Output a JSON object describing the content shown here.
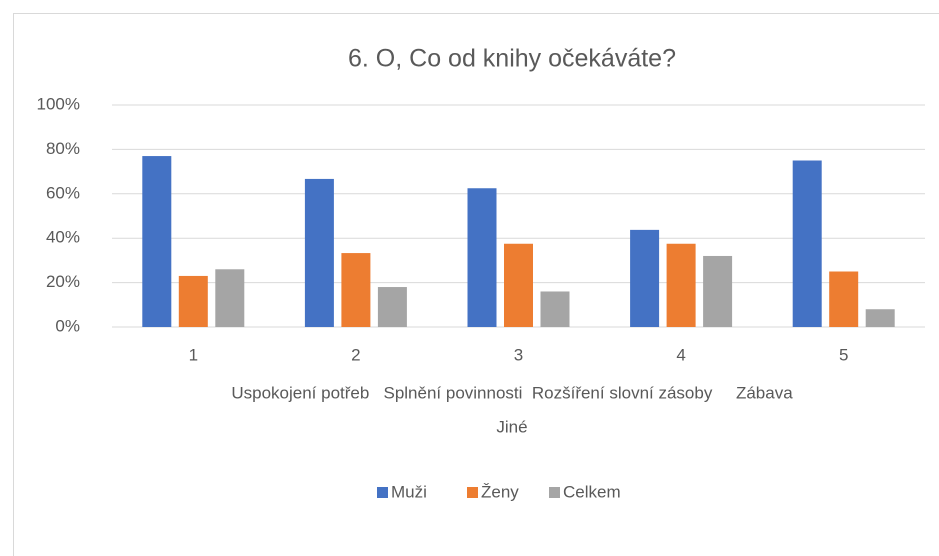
{
  "chart_data": {
    "type": "bar",
    "title": "6. O, Co od knihy očekáváte?",
    "categories": [
      "1",
      "2",
      "3",
      "4",
      "5"
    ],
    "xlabel": [
      "Uspokojení potřeb   Splnění povinnosti  Rozšíření slovní zásoby     Zábava",
      "Jiné"
    ],
    "series": [
      {
        "name": "Muži",
        "color": "#4472c4",
        "values": [
          77,
          66.7,
          62.5,
          43.75,
          75
        ]
      },
      {
        "name": "Ženy",
        "color": "#ed7d31",
        "values": [
          23,
          33.3,
          37.5,
          37.5,
          25
        ]
      },
      {
        "name": "Celkem",
        "color": "#a5a5a5",
        "values": [
          26,
          18,
          16,
          32,
          8
        ]
      }
    ],
    "ylim": [
      0,
      100
    ],
    "yticks": [
      {
        "value": 0,
        "label": "0%"
      },
      {
        "value": 20,
        "label": "20%"
      },
      {
        "value": 40,
        "label": "40%"
      },
      {
        "value": 60,
        "label": "60%"
      },
      {
        "value": 80,
        "label": "80%"
      },
      {
        "value": 100,
        "label": "100%"
      }
    ],
    "grid": true,
    "legend": "bottom"
  }
}
